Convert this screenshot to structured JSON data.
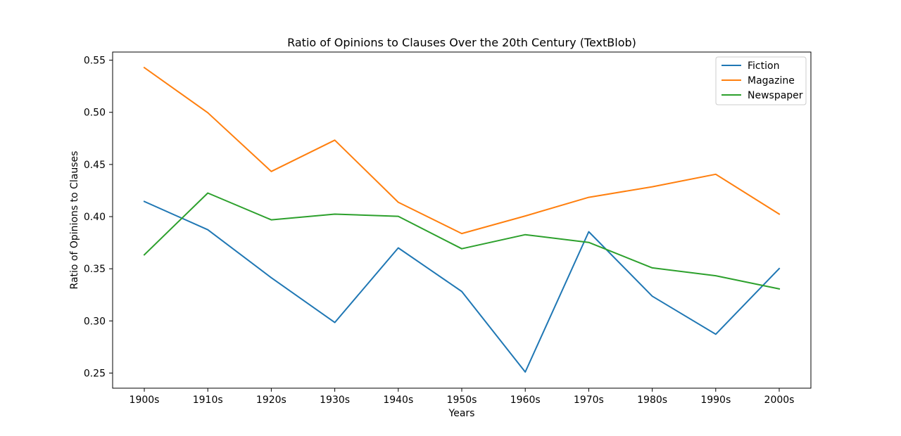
{
  "chart_data": {
    "type": "line",
    "title": "Ratio of Opinions to Clauses Over the 20th Century (TextBlob)",
    "xlabel": "Years",
    "ylabel": "Ratio of Opinions to Clauses",
    "categories": [
      "1900s",
      "1910s",
      "1920s",
      "1930s",
      "1940s",
      "1950s",
      "1960s",
      "1970s",
      "1980s",
      "1990s",
      "2000s"
    ],
    "ylim": [
      0.2355,
      0.5578
    ],
    "yticks": [
      0.25,
      0.3,
      0.35,
      0.4,
      0.45,
      0.5,
      0.55
    ],
    "ytick_labels": [
      "0.25",
      "0.30",
      "0.35",
      "0.40",
      "0.45",
      "0.50",
      "0.55"
    ],
    "grid": false,
    "legend_position": "top-right",
    "series": [
      {
        "name": "Fiction",
        "color": "#1f77b4",
        "values": [
          0.4145,
          0.3874,
          0.3414,
          0.2985,
          0.37,
          0.3282,
          0.251,
          0.3855,
          0.3237,
          0.2872,
          0.3502
        ]
      },
      {
        "name": "Magazine",
        "color": "#ff7f0e",
        "values": [
          0.5428,
          0.4996,
          0.4433,
          0.4733,
          0.4138,
          0.3838,
          0.4006,
          0.4185,
          0.4286,
          0.4406,
          0.4024
        ]
      },
      {
        "name": "Newspaper",
        "color": "#2ca02c",
        "values": [
          0.3634,
          0.4226,
          0.3969,
          0.4024,
          0.4003,
          0.3692,
          0.3827,
          0.3753,
          0.3509,
          0.3433,
          0.3307
        ]
      }
    ]
  }
}
